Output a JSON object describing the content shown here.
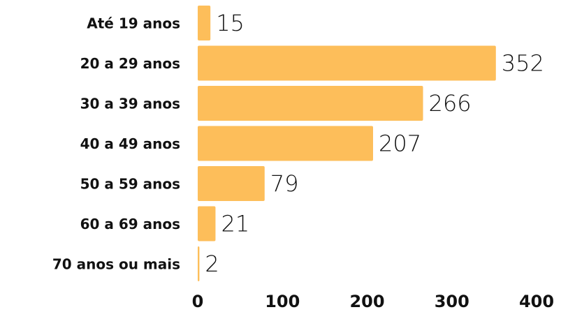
{
  "chart_data": {
    "type": "bar",
    "orientation": "horizontal",
    "categories": [
      "Até 19 anos",
      "20 a 29 anos",
      "30 a 39 anos",
      "40 a 49 anos",
      "50 a 59 anos",
      "60 a 69 anos",
      "70 anos ou mais"
    ],
    "values": [
      15,
      352,
      266,
      207,
      79,
      21,
      2
    ],
    "color": "#fdbe5a",
    "xlim": [
      0,
      400
    ],
    "xticks": [
      0,
      100,
      200,
      300,
      400
    ],
    "grid": false
  }
}
